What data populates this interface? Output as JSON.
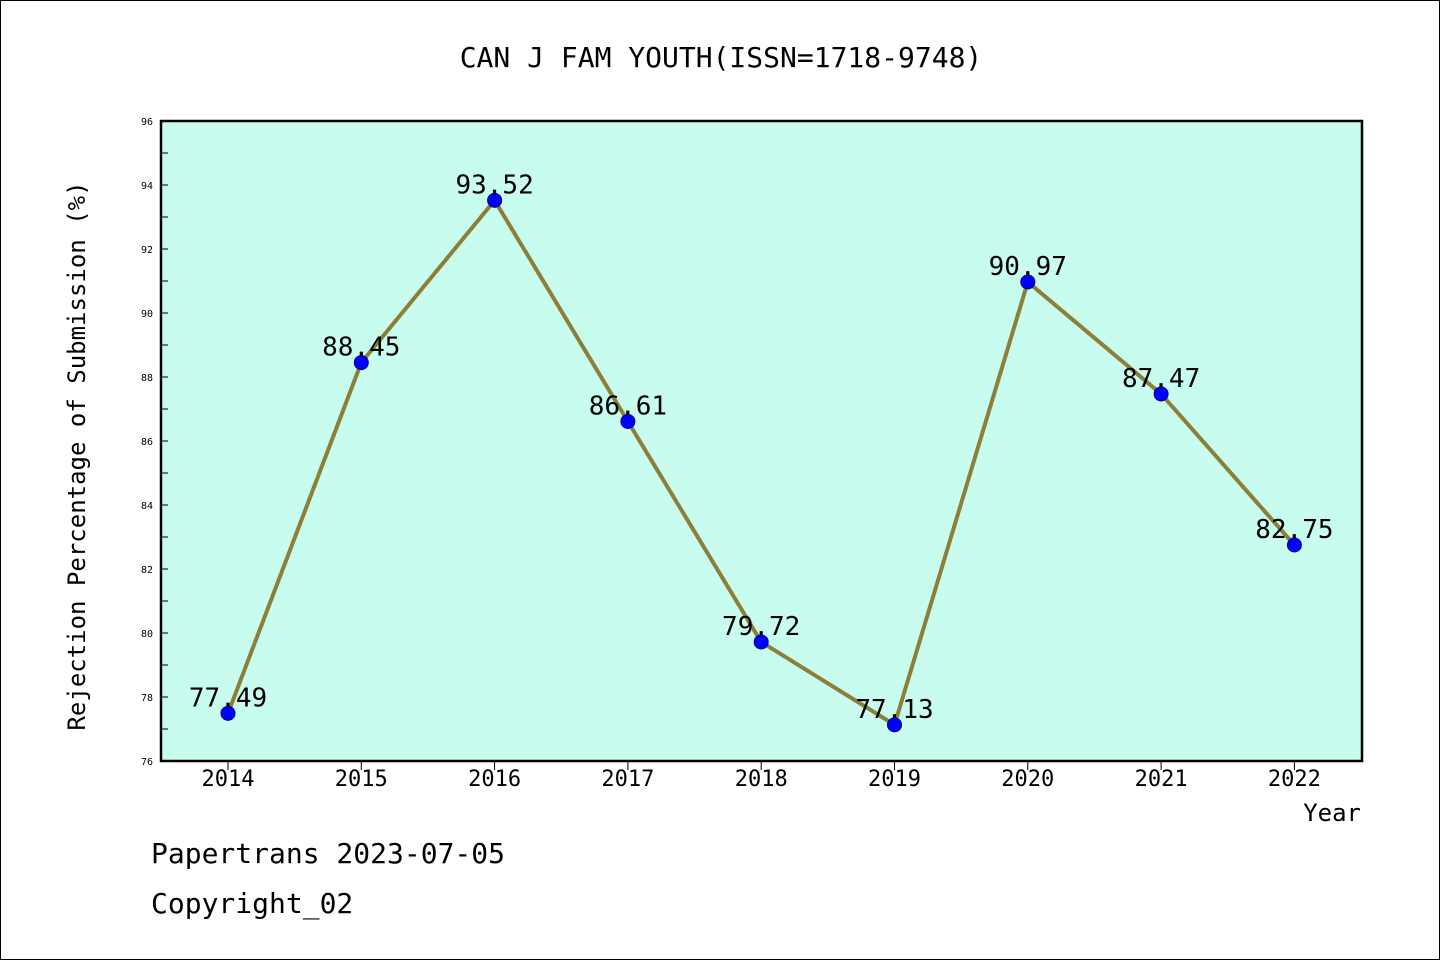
{
  "chart_data": {
    "type": "line",
    "title": "CAN J FAM YOUTH(ISSN=1718-9748)",
    "xlabel": "Year",
    "ylabel": "Rejection Percentage of Submission (%)",
    "categories": [
      "2014",
      "2015",
      "2016",
      "2017",
      "2018",
      "2019",
      "2020",
      "2021",
      "2022"
    ],
    "values": [
      77.49,
      88.45,
      93.52,
      86.61,
      79.72,
      77.13,
      90.97,
      87.47,
      82.75
    ],
    "point_labels": [
      "77.49",
      "88.45",
      "93.52",
      "86.61",
      "79.72",
      "77.13",
      "90.97",
      "87.47",
      "82.75"
    ],
    "ylim": [
      76,
      96
    ],
    "yticks": [
      "76",
      "78",
      "80",
      "82",
      "84",
      "86",
      "88",
      "90",
      "92",
      "94",
      "96"
    ],
    "grid": false,
    "colors": {
      "plot_background": "#c8fcee",
      "line": "#8c7f3a",
      "marker": "#0000ff"
    }
  },
  "footer": {
    "line1": "Papertrans 2023-07-05",
    "line2": "Copyright_02"
  }
}
